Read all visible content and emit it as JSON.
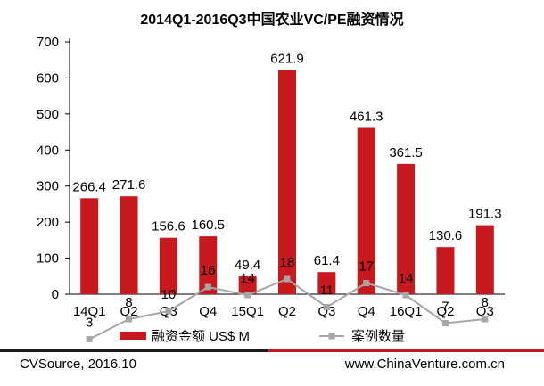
{
  "chart_data": {
    "type": "bar",
    "title": "2014Q1-2016Q3中国农业VC/PE融资情况",
    "categories": [
      "14Q1",
      "Q2",
      "Q3",
      "Q4",
      "15Q1",
      "Q2",
      "Q3",
      "Q4",
      "16Q1",
      "Q2",
      "Q3"
    ],
    "ylim": [
      0,
      700
    ],
    "yticks": [
      0,
      100,
      200,
      300,
      400,
      500,
      600,
      700
    ],
    "grid": false,
    "legend_position": "bottom",
    "series": [
      {
        "name": "融资金额 US$ M",
        "type": "bar",
        "color": "#C8191E",
        "values": [
          266.4,
          271.6,
          156.6,
          160.5,
          49.4,
          621.9,
          61.4,
          461.3,
          361.5,
          130.6,
          191.3
        ],
        "labels": [
          "266.4",
          "271.6",
          "156.6",
          "160.5",
          "49.4",
          "621.9",
          "61.4",
          "461.3",
          "361.5",
          "130.6",
          "191.3"
        ]
      },
      {
        "name": "案例数量",
        "type": "line",
        "color": "#A6A6A6",
        "values": [
          3,
          8,
          10,
          16,
          14,
          18,
          11,
          17,
          14,
          7,
          8
        ],
        "labels": [
          "3",
          "8",
          "10",
          "16",
          "14",
          "18",
          "11",
          "17",
          "14",
          "7",
          "8"
        ]
      }
    ]
  },
  "footer": {
    "source": "CVSource, 2016.10",
    "site": "www.ChinaVenture.com.cn"
  },
  "colors": {
    "footer_rule_dark": "#1A1A1A",
    "footer_rule_red": "#C8191E"
  }
}
